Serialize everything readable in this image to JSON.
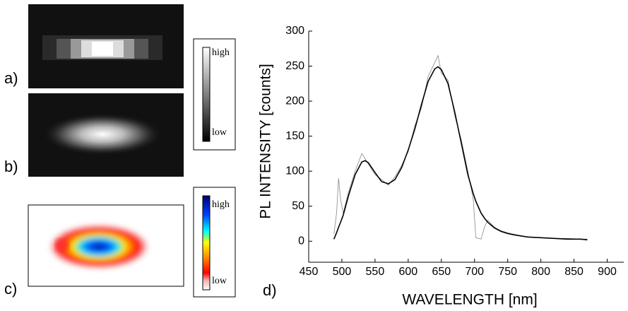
{
  "panels": {
    "a": "a)",
    "b": "b)",
    "c": "c)",
    "d": "d)",
    "high_1": "high",
    "low_1": "low",
    "high_2": "high",
    "low_2": "low"
  },
  "chart_data": {
    "type": "line",
    "x_label": "WAVELENGTH [nm]",
    "y_label": "PL INTENSITY [counts]",
    "x": [
      488,
      492,
      495,
      498,
      502,
      510,
      520,
      530,
      535,
      540,
      550,
      560,
      570,
      580,
      590,
      600,
      610,
      620,
      630,
      640,
      645,
      650,
      660,
      670,
      680,
      690,
      698,
      702,
      710,
      715,
      720,
      730,
      740,
      750,
      760,
      780,
      800,
      820,
      840,
      860,
      870
    ],
    "series": [
      {
        "color": "#888888",
        "values": [
          10,
          40,
          90,
          60,
          40,
          70,
          100,
          125,
          118,
          110,
          95,
          88,
          80,
          92,
          108,
          128,
          165,
          190,
          235,
          255,
          265,
          240,
          230,
          180,
          145,
          100,
          60,
          5,
          3,
          20,
          30,
          20,
          15,
          12,
          10,
          6,
          5,
          4,
          4,
          3,
          3
        ]
      },
      {
        "color": "#000000",
        "values": [
          3,
          12,
          20,
          27,
          37,
          65,
          95,
          113,
          115,
          112,
          98,
          85,
          82,
          88,
          105,
          130,
          160,
          195,
          228,
          246,
          249,
          245,
          225,
          185,
          140,
          95,
          68,
          57,
          40,
          33,
          27,
          19,
          14,
          11,
          9,
          6,
          5,
          4,
          3,
          3,
          2
        ]
      }
    ],
    "xlim": [
      450,
      925
    ],
    "ylim": [
      -30,
      300
    ],
    "xticks": [
      450,
      500,
      550,
      600,
      650,
      700,
      750,
      800,
      850,
      900
    ],
    "yticks": [
      0,
      50,
      100,
      150,
      200,
      250,
      300
    ],
    "grid": false
  }
}
